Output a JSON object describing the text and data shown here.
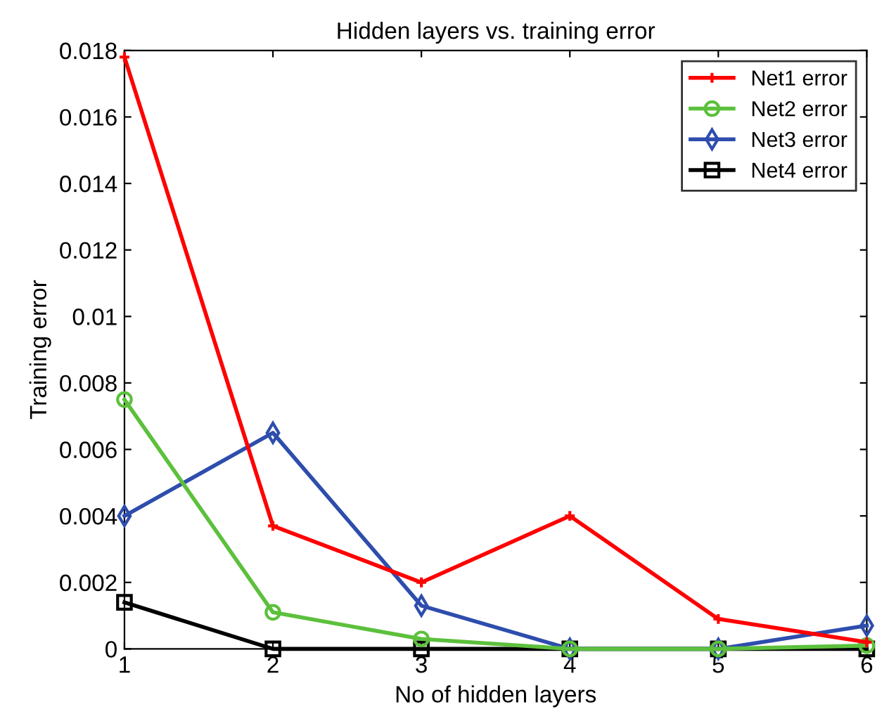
{
  "chart_data": {
    "type": "line",
    "title": "Hidden layers vs. training error",
    "xlabel": "No of hidden layers",
    "ylabel": "Training error",
    "x": [
      1,
      2,
      3,
      4,
      5,
      6
    ],
    "series": [
      {
        "name": "Net1 error",
        "color": "#ff0000",
        "marker": "cross",
        "values": [
          0.0178,
          0.0037,
          0.002,
          0.004,
          0.0009,
          0.0002
        ]
      },
      {
        "name": "Net2 error",
        "color": "#5cc03c",
        "marker": "circle",
        "values": [
          0.0075,
          0.0011,
          0.0003,
          0,
          0,
          0.0001
        ]
      },
      {
        "name": "Net3 error",
        "color": "#2e4dad",
        "marker": "diamond",
        "values": [
          0.004,
          0.0065,
          0.0013,
          0,
          0,
          0.0007
        ]
      },
      {
        "name": "Net4 error",
        "color": "#000000",
        "marker": "square",
        "values": [
          0.0014,
          0,
          0,
          0,
          0,
          0
        ]
      }
    ],
    "xlim": [
      1,
      6
    ],
    "xticks": [
      1,
      2,
      3,
      4,
      5,
      6
    ],
    "ylim": [
      0,
      0.018
    ],
    "yticks": [
      0,
      0.002,
      0.004,
      0.006,
      0.008,
      0.01,
      0.012,
      0.014,
      0.016,
      0.018
    ],
    "grid": false,
    "legend": "top right",
    "line_style": "solid"
  }
}
